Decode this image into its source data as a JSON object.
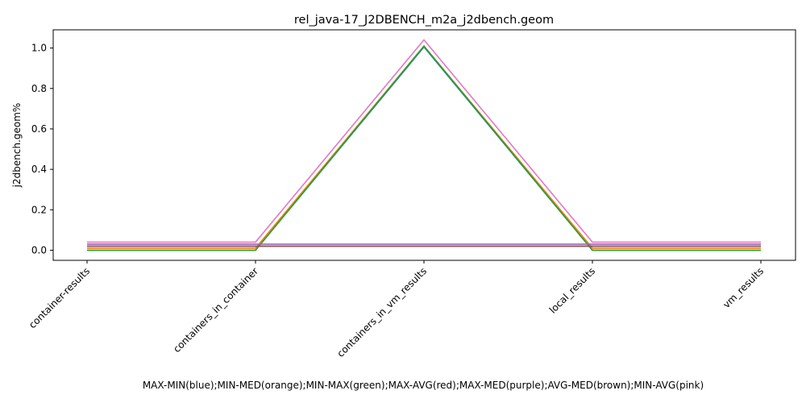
{
  "chart_data": {
    "type": "line",
    "title": "rel_java-17_J2DBENCH_m2a_j2dbench.geom",
    "xlabel": "MAX-MIN(blue);MIN-MED(orange);MIN-MAX(green);MAX-AVG(red);MAX-MED(purple);AVG-MED(brown);MIN-AVG(pink)",
    "ylabel": "j2dbench.geom%",
    "categories": [
      "container-results",
      "containers_in_container",
      "containers_in_vm_results",
      "local_results",
      "vm_results"
    ],
    "ylim": [
      -0.05,
      1.09
    ],
    "yticks": [
      "0.0",
      "0.2",
      "0.4",
      "0.6",
      "0.8",
      "1.0"
    ],
    "grid": false,
    "series": [
      {
        "color": "#1f77b4",
        "values": [
          0.0,
          0.0,
          1.005,
          0.0,
          0.0
        ]
      },
      {
        "color": "#ff7f0e",
        "values": [
          0.01,
          0.01,
          1.01,
          0.01,
          0.01
        ]
      },
      {
        "color": "#2ca02c",
        "values": [
          0.0,
          0.0,
          1.01,
          0.0,
          0.0
        ]
      },
      {
        "color": "#d62728",
        "values": [
          0.02,
          0.02,
          0.02,
          0.02,
          0.02
        ]
      },
      {
        "color": "#9467bd",
        "values": [
          0.03,
          0.03,
          0.03,
          0.03,
          0.03
        ]
      },
      {
        "color": "#8c564b",
        "values": [
          0.02,
          0.02,
          0.02,
          0.02,
          0.02
        ]
      },
      {
        "color": "#e377c2",
        "values": [
          0.04,
          0.04,
          1.04,
          0.04,
          0.04
        ]
      }
    ]
  }
}
